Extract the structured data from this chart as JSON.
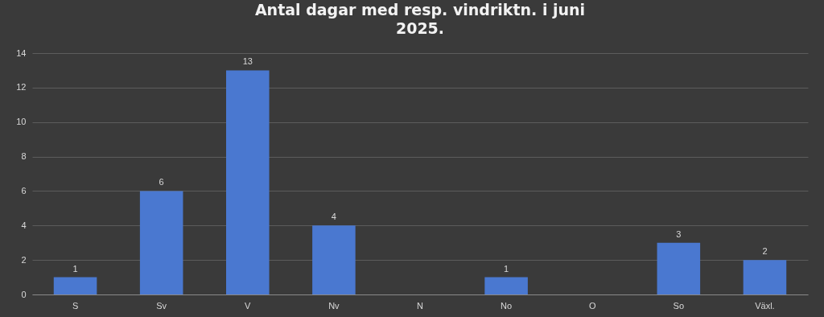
{
  "chart_data": {
    "type": "bar",
    "title": "Antal dagar med resp. vindriktn. i juni 2025.",
    "categories": [
      "S",
      "Sv",
      "V",
      "Nv",
      "N",
      "No",
      "O",
      "So",
      "Växl."
    ],
    "values": [
      1,
      6,
      13,
      4,
      0,
      1,
      0,
      3,
      2
    ],
    "value_labels": [
      "1",
      "6",
      "13",
      "4",
      null,
      "1",
      null,
      "3",
      "2"
    ],
    "color": "#4a78d0",
    "ylim": [
      0,
      14
    ],
    "yticks": [
      0,
      2,
      4,
      6,
      8,
      10,
      12,
      14
    ],
    "grid": "y"
  }
}
